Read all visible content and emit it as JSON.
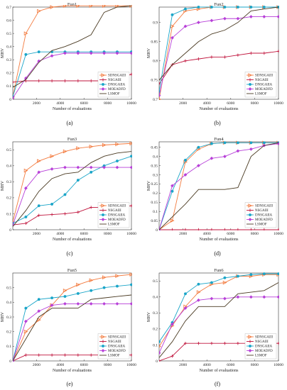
{
  "series_styles": [
    {
      "name": "SDNSGAIII",
      "color": "#f37b3f",
      "marker": "triangle-right"
    },
    {
      "name": "NSGAIII",
      "color": "#c0143c",
      "marker": "plus"
    },
    {
      "name": "DNSGAIIA",
      "color": "#1aa5c8",
      "marker": "circle"
    },
    {
      "name": "MOEADFD",
      "color": "#b73fd8",
      "marker": "diamond"
    },
    {
      "name": "LSMOF",
      "color": "#4a3a22",
      "marker": "none"
    }
  ],
  "chart_data": [
    {
      "type": "line",
      "title": "Fun1",
      "sublabel": "(a)",
      "xlabel": "Number of evaluations",
      "ylabel": "MHV",
      "xlim": [
        0,
        10000
      ],
      "ylim": [
        0,
        0.7
      ],
      "xticks": [
        2000,
        4000,
        6000,
        8000,
        10000
      ],
      "yticks": [
        0,
        0.1,
        0.2,
        0.3,
        0.4,
        0.5,
        0.6,
        0.7
      ],
      "x": [
        0,
        1100,
        2200,
        3300,
        4400,
        5500,
        6600,
        7700,
        8800,
        10000
      ],
      "series": [
        {
          "name": "SDNSGAIII",
          "values": [
            0.02,
            0.5,
            0.67,
            0.7,
            0.71,
            0.71,
            0.71,
            0.71,
            0.71,
            0.71
          ]
        },
        {
          "name": "NSGAIII",
          "values": [
            0.13,
            0.14,
            0.14,
            0.14,
            0.14,
            0.14,
            0.14,
            0.14,
            0.15,
            0.19
          ]
        },
        {
          "name": "DNSGAIIA",
          "values": [
            0.02,
            0.34,
            0.36,
            0.36,
            0.36,
            0.36,
            0.36,
            0.36,
            0.36,
            0.36
          ]
        },
        {
          "name": "MOEADFD",
          "values": [
            0.01,
            0.16,
            0.29,
            0.33,
            0.35,
            0.35,
            0.35,
            0.35,
            0.35,
            0.35
          ]
        },
        {
          "name": "LSMOF",
          "values": [
            0.09,
            0.15,
            0.28,
            0.37,
            0.4,
            0.44,
            0.49,
            0.66,
            0.7,
            0.71
          ]
        }
      ]
    },
    {
      "type": "line",
      "title": "Fun2",
      "sublabel": "(b)",
      "xlabel": "Number of evaluations",
      "ylabel": "MHV",
      "xlim": [
        0,
        10000
      ],
      "ylim": [
        0.7,
        0.94
      ],
      "xticks": [
        2000,
        4000,
        6000,
        8000,
        10000
      ],
      "yticks": [
        0.7,
        0.75,
        0.8,
        0.85,
        0.9
      ],
      "x": [
        0,
        1100,
        2200,
        3300,
        4400,
        5500,
        6600,
        7700,
        8800,
        10000
      ],
      "series": [
        {
          "name": "SDNSGAIII",
          "values": [
            0.7,
            0.89,
            0.93,
            0.935,
            0.94,
            0.94,
            0.94,
            0.94,
            0.94,
            0.94
          ]
        },
        {
          "name": "NSGAIII",
          "values": [
            0.74,
            0.79,
            0.8,
            0.805,
            0.81,
            0.81,
            0.815,
            0.82,
            0.82,
            0.825
          ]
        },
        {
          "name": "DNSGAIIA",
          "values": [
            0.72,
            0.92,
            0.935,
            0.94,
            0.94,
            0.94,
            0.94,
            0.94,
            0.94,
            0.94
          ]
        },
        {
          "name": "MOEADFD",
          "values": [
            0.71,
            0.86,
            0.89,
            0.9,
            0.905,
            0.91,
            0.91,
            0.915,
            0.915,
            0.915
          ]
        },
        {
          "name": "LSMOF",
          "values": [
            0.75,
            0.79,
            0.82,
            0.85,
            0.87,
            0.88,
            0.9,
            0.93,
            0.935,
            0.94
          ]
        }
      ]
    },
    {
      "type": "line",
      "title": "Fun3",
      "sublabel": "(c)",
      "xlabel": "Number of evaluations",
      "ylabel": "MHV",
      "xlim": [
        0,
        10000
      ],
      "ylim": [
        0,
        0.55
      ],
      "xticks": [
        2000,
        4000,
        6000,
        8000,
        10000
      ],
      "yticks": [
        0,
        0.1,
        0.2,
        0.3,
        0.4,
        0.5
      ],
      "x": [
        0,
        1100,
        2200,
        3300,
        4400,
        5500,
        6600,
        7700,
        8800,
        10000
      ],
      "series": [
        {
          "name": "SDNSGAIII",
          "values": [
            0.05,
            0.37,
            0.43,
            0.46,
            0.49,
            0.51,
            0.52,
            0.53,
            0.535,
            0.54
          ]
        },
        {
          "name": "NSGAIII",
          "values": [
            0.03,
            0.04,
            0.09,
            0.095,
            0.1,
            0.11,
            0.14,
            0.14,
            0.14,
            0.15
          ]
        },
        {
          "name": "DNSGAIIA",
          "values": [
            0.04,
            0.08,
            0.15,
            0.16,
            0.22,
            0.31,
            0.36,
            0.4,
            0.43,
            0.46
          ]
        },
        {
          "name": "MOEADFD",
          "values": [
            0.03,
            0.26,
            0.36,
            0.38,
            0.39,
            0.39,
            0.39,
            0.39,
            0.39,
            0.39
          ]
        },
        {
          "name": "LSMOF",
          "values": [
            0.02,
            0.12,
            0.24,
            0.32,
            0.35,
            0.36,
            0.42,
            0.46,
            0.48,
            0.49
          ]
        }
      ]
    },
    {
      "type": "line",
      "title": "Fun4",
      "sublabel": "(d)",
      "xlabel": "Number of evaluations",
      "ylabel": "MHV",
      "xlim": [
        0,
        10000
      ],
      "ylim": [
        0,
        0.48
      ],
      "xticks": [
        2000,
        4000,
        6000,
        8000,
        10000
      ],
      "yticks": [
        0,
        0.05,
        0.1,
        0.15,
        0.2,
        0.25,
        0.3,
        0.35,
        0.4,
        0.45
      ],
      "x": [
        0,
        1100,
        2200,
        3300,
        4400,
        5500,
        6600,
        7700,
        8800,
        10000
      ],
      "series": [
        {
          "name": "SDNSGAIII",
          "values": [
            0.0,
            0.05,
            0.37,
            0.44,
            0.47,
            0.475,
            0.475,
            0.475,
            0.475,
            0.475
          ]
        },
        {
          "name": "NSGAIII",
          "values": [
            0.0,
            0.0,
            0.0,
            0.0,
            0.0,
            0.0,
            0.0,
            0.0,
            0.0,
            0.0
          ]
        },
        {
          "name": "DNSGAIIA",
          "values": [
            0.0,
            0.21,
            0.38,
            0.45,
            0.47,
            0.475,
            0.475,
            0.475,
            0.475,
            0.475
          ]
        },
        {
          "name": "MOEADFD",
          "values": [
            0.0,
            0.24,
            0.3,
            0.35,
            0.39,
            0.4,
            0.43,
            0.44,
            0.46,
            0.47
          ]
        },
        {
          "name": "LSMOF",
          "values": [
            0.0,
            0.07,
            0.14,
            0.22,
            0.22,
            0.22,
            0.23,
            0.4,
            0.46,
            0.475
          ]
        }
      ]
    },
    {
      "type": "line",
      "title": "Fun5",
      "sublabel": "(e)",
      "xlabel": "Number of evaluations",
      "ylabel": "MHV",
      "xlim": [
        0,
        10000
      ],
      "ylim": [
        0,
        0.6
      ],
      "xticks": [
        2000,
        4000,
        6000,
        8000,
        10000
      ],
      "yticks": [
        0,
        0.1,
        0.2,
        0.3,
        0.4,
        0.5
      ],
      "x": [
        0,
        1100,
        2200,
        3300,
        4400,
        5500,
        6600,
        7700,
        8800,
        10000
      ],
      "series": [
        {
          "name": "SDNSGAIII",
          "values": [
            0.0,
            0.2,
            0.28,
            0.38,
            0.48,
            0.52,
            0.55,
            0.57,
            0.58,
            0.59
          ]
        },
        {
          "name": "NSGAIII",
          "values": [
            0.0,
            0.04,
            0.04,
            0.04,
            0.04,
            0.04,
            0.04,
            0.04,
            0.04,
            0.04
          ]
        },
        {
          "name": "DNSGAIIA",
          "values": [
            0.0,
            0.36,
            0.42,
            0.43,
            0.44,
            0.46,
            0.48,
            0.5,
            0.51,
            0.52
          ]
        },
        {
          "name": "MOEADFD",
          "values": [
            0.0,
            0.27,
            0.34,
            0.38,
            0.39,
            0.39,
            0.39,
            0.39,
            0.39,
            0.39
          ]
        },
        {
          "name": "LSMOF",
          "values": [
            0.0,
            0.15,
            0.3,
            0.36,
            0.36,
            0.36,
            0.42,
            0.43,
            0.44,
            0.45
          ]
        }
      ]
    },
    {
      "type": "line",
      "title": "Fun6",
      "sublabel": "(f)",
      "xlabel": "Number of evaluations",
      "ylabel": "MHV",
      "xlim": [
        0,
        10000
      ],
      "ylim": [
        0,
        0.55
      ],
      "xticks": [
        2000,
        4000,
        6000,
        8000,
        10000
      ],
      "yticks": [
        0,
        0.1,
        0.2,
        0.3,
        0.4,
        0.5
      ],
      "x": [
        0,
        1100,
        2200,
        3300,
        4400,
        5500,
        6600,
        7700,
        8800,
        10000
      ],
      "series": [
        {
          "name": "SDNSGAIII",
          "values": [
            0.09,
            0.22,
            0.34,
            0.43,
            0.48,
            0.49,
            0.53,
            0.53,
            0.54,
            0.54
          ]
        },
        {
          "name": "NSGAIII",
          "values": [
            0.0,
            0.03,
            0.11,
            0.11,
            0.11,
            0.11,
            0.11,
            0.11,
            0.11,
            0.11
          ]
        },
        {
          "name": "DNSGAIIA",
          "values": [
            0.12,
            0.24,
            0.42,
            0.48,
            0.49,
            0.52,
            0.53,
            0.54,
            0.545,
            0.545
          ]
        },
        {
          "name": "MOEADFD",
          "values": [
            0.05,
            0.23,
            0.33,
            0.38,
            0.39,
            0.39,
            0.4,
            0.4,
            0.4,
            0.4
          ]
        },
        {
          "name": "LSMOF",
          "values": [
            0.02,
            0.12,
            0.25,
            0.34,
            0.34,
            0.34,
            0.42,
            0.43,
            0.44,
            0.49
          ]
        }
      ]
    }
  ]
}
